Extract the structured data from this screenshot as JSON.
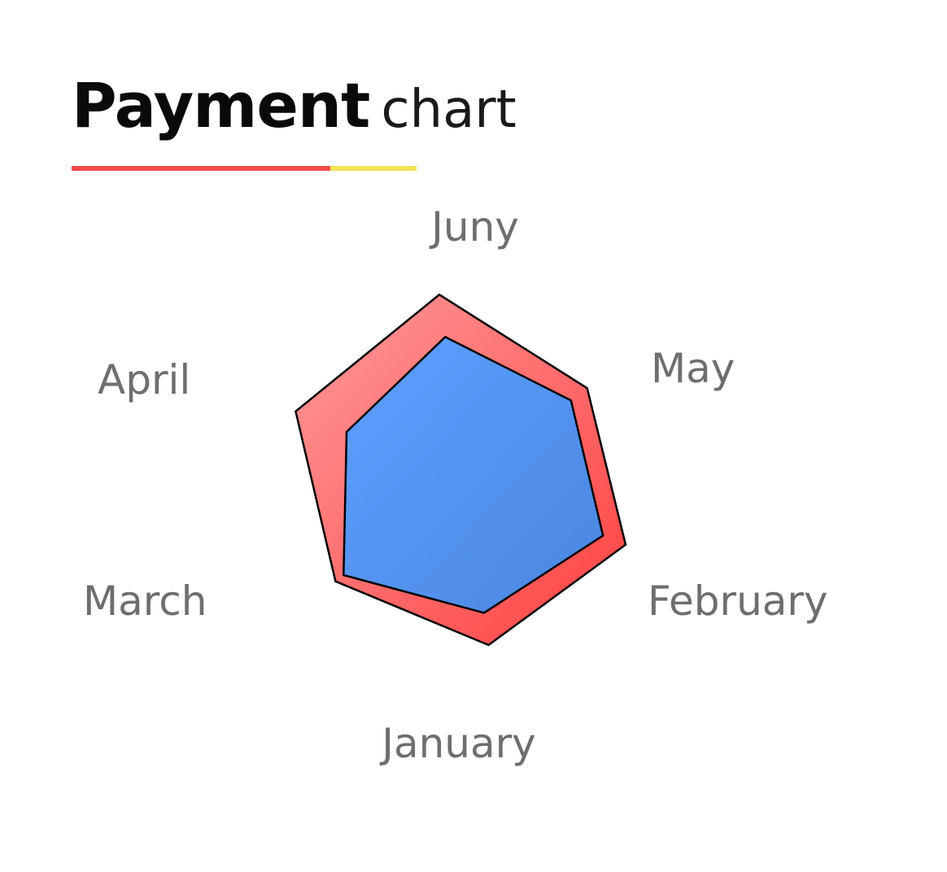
{
  "header": {
    "title_strong": "Payment",
    "title_light": "chart"
  },
  "colors": {
    "accent_red": "#f24b4b",
    "accent_yellow": "#f3e257",
    "series_red_light": "#ff9a9a",
    "series_red_dark": "#ff4040",
    "series_blue_light": "#5ea0ff",
    "series_blue_dark": "#4a86e0",
    "outline": "#000000",
    "label_gray": "#6e6e6e"
  },
  "chart_data": {
    "type": "radar",
    "categories": [
      "Juny",
      "May",
      "February",
      "January",
      "March",
      "April"
    ],
    "series": [
      {
        "values": [
          92,
          75,
          85,
          82,
          81,
          90
        ],
        "color": "red"
      },
      {
        "values": [
          71,
          65,
          73,
          66,
          76,
          63
        ],
        "color": "blue"
      }
    ],
    "rlim": [
      0,
      100
    ],
    "grid": false
  }
}
